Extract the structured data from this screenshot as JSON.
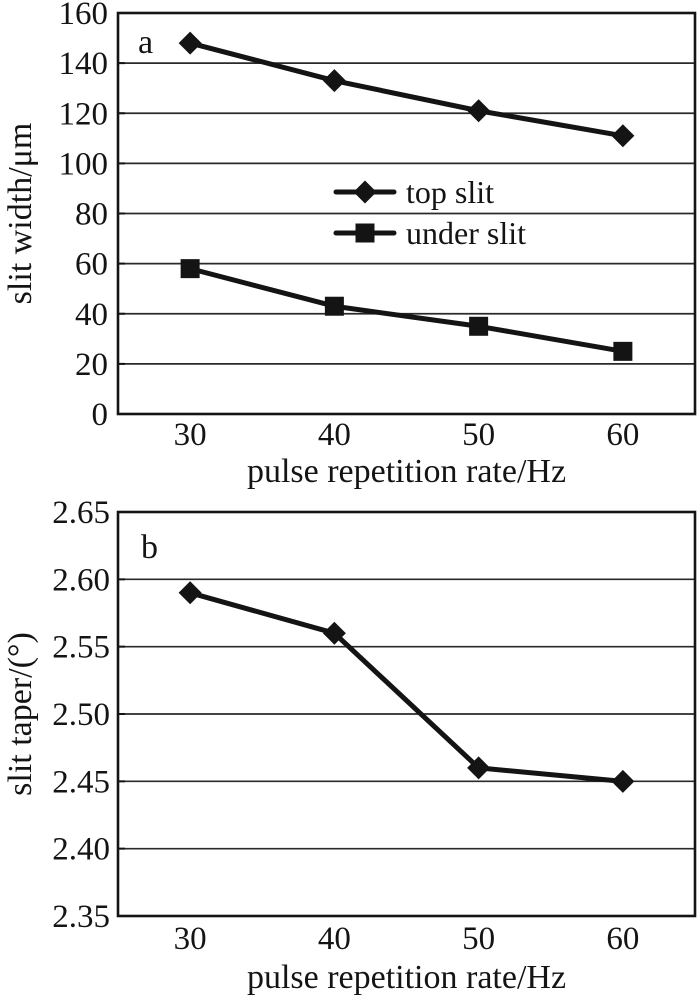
{
  "figure": {
    "background": "#ffffff",
    "ink_color": "#141414",
    "gridline_color": "#2a2a2a"
  },
  "chart_data": [
    {
      "type": "line",
      "panel_label": "a",
      "xlabel": "pulse repetition rate/Hz",
      "ylabel": "slit width/μm",
      "xlim": [
        25,
        65
      ],
      "ylim": [
        0,
        160
      ],
      "grid": true,
      "legend_position": "inside-upper-middle-left",
      "xticks": [
        30,
        40,
        50,
        60
      ],
      "xtick_labels": [
        "30",
        "40",
        "50",
        "60"
      ],
      "yticks": [
        0,
        20,
        40,
        60,
        80,
        100,
        120,
        140,
        160
      ],
      "ytick_labels": [
        "0",
        "20",
        "40",
        "60",
        "80",
        "100",
        "120",
        "140",
        "160"
      ],
      "x": [
        30,
        40,
        50,
        60
      ],
      "series": [
        {
          "name": "top slit",
          "marker": "diamond",
          "values": [
            148,
            133,
            121,
            111
          ]
        },
        {
          "name": "under slit",
          "marker": "square",
          "values": [
            58,
            43,
            35,
            25
          ]
        }
      ],
      "legend_visible": true
    },
    {
      "type": "line",
      "panel_label": "b",
      "xlabel": "pulse repetition rate/Hz",
      "ylabel": "slit taper/(°)",
      "xlim": [
        25,
        65
      ],
      "ylim": [
        2.35,
        2.65
      ],
      "grid": true,
      "legend_position": "none",
      "xticks": [
        30,
        40,
        50,
        60
      ],
      "xtick_labels": [
        "30",
        "40",
        "50",
        "60"
      ],
      "yticks": [
        2.35,
        2.4,
        2.45,
        2.5,
        2.55,
        2.6,
        2.65
      ],
      "ytick_labels": [
        "2.35",
        "2.40",
        "2.45",
        "2.50",
        "2.55",
        "2.60",
        "2.65"
      ],
      "x": [
        30,
        40,
        50,
        60
      ],
      "series": [
        {
          "name": "slit taper",
          "marker": "diamond",
          "values": [
            2.59,
            2.56,
            2.46,
            2.45
          ]
        }
      ],
      "legend_visible": false
    }
  ]
}
